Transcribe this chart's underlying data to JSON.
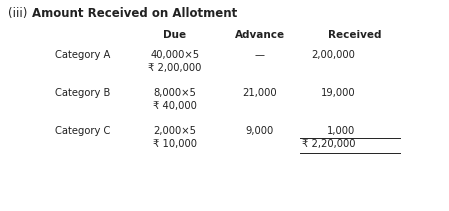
{
  "title_part1": "(iii)",
  "title_part2": "Amount Received on Allotment",
  "headers": [
    "Due",
    "Advance",
    "Received"
  ],
  "rows": [
    {
      "label": "Category A",
      "due_line1": "40,000×5",
      "due_line2": "₹ 2,00,000",
      "advance": "—",
      "received_line1": "2,00,000",
      "received_line2": ""
    },
    {
      "label": "Category B",
      "due_line1": "8,000×5",
      "due_line2": "₹ 40,000",
      "advance": "21,000",
      "received_line1": "19,000",
      "received_line2": ""
    },
    {
      "label": "Category C",
      "due_line1": "2,000×5",
      "due_line2": "₹ 10,000",
      "advance": "9,000",
      "received_line1": "1,000",
      "received_line2": "₹ 2,20,000"
    }
  ],
  "bg_color": "#ffffff",
  "text_color": "#222222",
  "title_fontsize": 8.5,
  "header_fontsize": 7.5,
  "body_fontsize": 7.2
}
